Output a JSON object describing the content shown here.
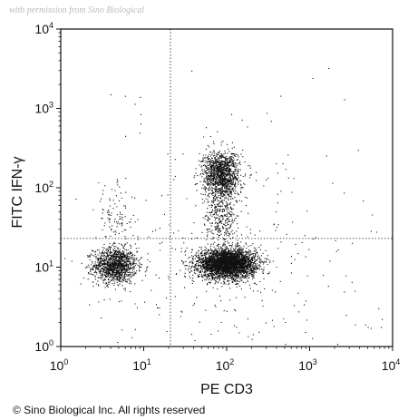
{
  "chart_data": {
    "type": "scatter",
    "title": "",
    "xlabel": "PE CD3",
    "ylabel": "FITC IFN-γ",
    "x_scale": "log",
    "y_scale": "log",
    "xlim": [
      1,
      10000
    ],
    "ylim": [
      1,
      10000
    ],
    "x_ticks": [
      {
        "base": "10",
        "exp": "0"
      },
      {
        "base": "10",
        "exp": "1"
      },
      {
        "base": "10",
        "exp": "2"
      },
      {
        "base": "10",
        "exp": "3"
      },
      {
        "base": "10",
        "exp": "4"
      }
    ],
    "y_ticks": [
      {
        "base": "10",
        "exp": "0"
      },
      {
        "base": "10",
        "exp": "1"
      },
      {
        "base": "10",
        "exp": "2"
      },
      {
        "base": "10",
        "exp": "3"
      },
      {
        "base": "10",
        "exp": "4"
      }
    ],
    "quadrant_gate": {
      "x": 21,
      "y": 23
    },
    "grid": false,
    "legend": "none",
    "point_color": "#111111",
    "populations": [
      {
        "center": [
          4.5,
          10.5
        ],
        "spread_log": [
          0.13,
          0.11
        ],
        "approx_events": 1300
      },
      {
        "center": [
          4.5,
          40
        ],
        "spread_log": [
          0.12,
          0.2
        ],
        "approx_events": 110
      },
      {
        "center": [
          100,
          11
        ],
        "spread_log": [
          0.17,
          0.09
        ],
        "approx_events": 3800
      },
      {
        "center": [
          85,
          150
        ],
        "spread_log": [
          0.11,
          0.14
        ],
        "approx_events": 1300
      },
      {
        "center": [
          85,
          45
        ],
        "spread_log": [
          0.1,
          0.2
        ],
        "approx_events": 400
      },
      {
        "center": [
          100,
          14
        ],
        "spread_log": [
          0.9,
          0.9
        ],
        "approx_events": 350
      }
    ]
  },
  "watermark": "with permission from Sino Biological",
  "copyright": "© Sino Biological Inc. All rights reserved"
}
